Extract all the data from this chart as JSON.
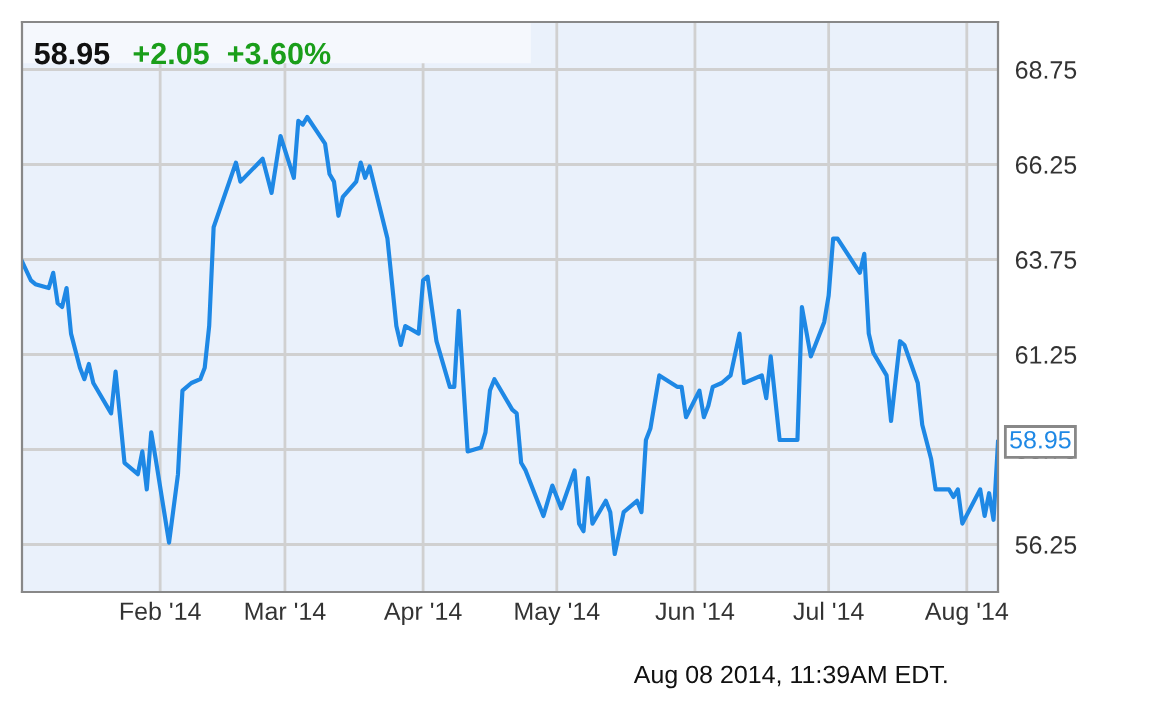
{
  "chart_data": {
    "type": "line",
    "title": "58.95",
    "subtitle": "+2.05  +3.60%",
    "annotations": [
      {
        "text": "58.95",
        "x": "2014-08-08",
        "y": 58.95
      },
      "Aug 08 2014, 11:39AM EDT."
    ],
    "x": [
      "2014-01-01",
      "2014-01-03",
      "2014-01-04",
      "2014-01-07",
      "2014-01-08",
      "2014-01-09",
      "2014-01-10",
      "2014-01-11",
      "2014-01-12",
      "2014-01-14",
      "2014-01-15",
      "2014-01-16",
      "2014-01-17",
      "2014-01-21",
      "2014-01-22",
      "2014-01-24",
      "2014-01-27",
      "2014-01-28",
      "2014-01-29",
      "2014-01-30",
      "2014-01-31",
      "2014-02-03",
      "2014-02-05",
      "2014-02-06",
      "2014-02-08",
      "2014-02-10",
      "2014-02-11",
      "2014-02-12",
      "2014-02-13",
      "2014-02-18",
      "2014-02-19",
      "2014-02-24",
      "2014-02-26",
      "2014-02-28",
      "2014-03-03",
      "2014-03-04",
      "2014-03-05",
      "2014-03-06",
      "2014-03-10",
      "2014-03-11",
      "2014-03-12",
      "2014-03-13",
      "2014-03-14",
      "2014-03-17",
      "2014-03-18",
      "2014-03-19",
      "2014-03-20",
      "2014-03-24",
      "2014-03-26",
      "2014-03-27",
      "2014-03-28",
      "2014-03-31",
      "2014-04-01",
      "2014-04-02",
      "2014-04-04",
      "2014-04-07",
      "2014-04-08",
      "2014-04-09",
      "2014-04-11",
      "2014-04-14",
      "2014-04-15",
      "2014-04-16",
      "2014-04-17",
      "2014-04-21",
      "2014-04-22",
      "2014-04-23",
      "2014-04-24",
      "2014-04-28",
      "2014-04-30",
      "2014-05-02",
      "2014-05-05",
      "2014-05-06",
      "2014-05-07",
      "2014-05-08",
      "2014-05-09",
      "2014-05-12",
      "2014-05-13",
      "2014-05-14",
      "2014-05-16",
      "2014-05-19",
      "2014-05-20",
      "2014-05-21",
      "2014-05-22",
      "2014-05-24",
      "2014-05-28",
      "2014-05-29",
      "2014-05-30",
      "2014-06-02",
      "2014-06-03",
      "2014-06-04",
      "2014-06-05",
      "2014-06-07",
      "2014-06-09",
      "2014-06-11",
      "2014-06-12",
      "2014-06-16",
      "2014-06-17",
      "2014-06-18",
      "2014-06-20",
      "2014-06-24",
      "2014-06-25",
      "2014-06-27",
      "2014-06-30",
      "2014-07-01",
      "2014-07-02",
      "2014-07-03",
      "2014-07-08",
      "2014-07-09",
      "2014-07-10",
      "2014-07-11",
      "2014-07-14",
      "2014-07-15",
      "2014-07-17",
      "2014-07-18",
      "2014-07-21",
      "2014-07-22",
      "2014-07-24",
      "2014-07-25",
      "2014-07-28",
      "2014-07-29",
      "2014-07-30",
      "2014-07-31",
      "2014-08-04",
      "2014-08-05",
      "2014-08-06",
      "2014-08-07",
      "2014-08-08"
    ],
    "series": [
      {
        "color": "#1e88e5",
        "values": [
          63.7,
          63.2,
          63.1,
          63.0,
          63.4,
          62.6,
          62.5,
          63.0,
          61.8,
          60.9,
          60.6,
          61.0,
          60.5,
          59.7,
          60.8,
          58.4,
          58.1,
          58.7,
          57.7,
          59.2,
          58.5,
          56.3,
          58.1,
          60.3,
          60.5,
          60.6,
          60.9,
          62.0,
          64.6,
          66.3,
          65.8,
          66.4,
          65.5,
          67.0,
          65.9,
          67.4,
          67.3,
          67.5,
          66.8,
          66.0,
          65.8,
          64.9,
          65.4,
          65.8,
          66.3,
          65.9,
          66.2,
          64.3,
          62.0,
          61.5,
          62.0,
          61.8,
          63.2,
          63.3,
          61.6,
          60.4,
          60.4,
          62.4,
          58.7,
          58.8,
          59.2,
          60.3,
          60.6,
          59.8,
          59.7,
          58.4,
          58.2,
          57.0,
          57.8,
          57.2,
          58.2,
          56.8,
          56.6,
          58.0,
          56.8,
          57.4,
          57.1,
          56.0,
          57.1,
          57.4,
          57.1,
          59.0,
          59.3,
          60.7,
          60.4,
          60.4,
          59.6,
          60.3,
          59.6,
          59.9,
          60.4,
          60.5,
          60.7,
          61.8,
          60.5,
          60.7,
          60.1,
          61.2,
          59.0,
          59.0,
          62.5,
          61.2,
          62.1,
          62.8,
          64.3,
          64.3,
          63.4,
          63.9,
          61.8,
          61.3,
          60.7,
          59.5,
          61.6,
          61.5,
          60.5,
          59.4,
          58.5,
          57.7,
          57.7,
          57.5,
          57.7,
          56.8,
          57.7,
          57.0,
          57.6,
          56.9,
          58.95
        ]
      }
    ],
    "xlim": [
      "2014-01-01",
      "2014-08-08"
    ],
    "xticks": [
      {
        "value": "2014-02-01",
        "label": "Feb '14"
      },
      {
        "value": "2014-03-01",
        "label": "Mar '14"
      },
      {
        "value": "2014-04-01",
        "label": "Apr '14"
      },
      {
        "value": "2014-05-01",
        "label": "May '14"
      },
      {
        "value": "2014-06-01",
        "label": "Jun '14"
      },
      {
        "value": "2014-07-01",
        "label": "Jul '14"
      },
      {
        "value": "2014-08-01",
        "label": "Aug '14"
      }
    ],
    "ylim": [
      55,
      70
    ],
    "yticks": [
      56.25,
      58.75,
      61.25,
      63.75,
      66.25,
      68.75
    ],
    "grid": true,
    "legend": false,
    "marker": "none",
    "line_style": "solid"
  }
}
